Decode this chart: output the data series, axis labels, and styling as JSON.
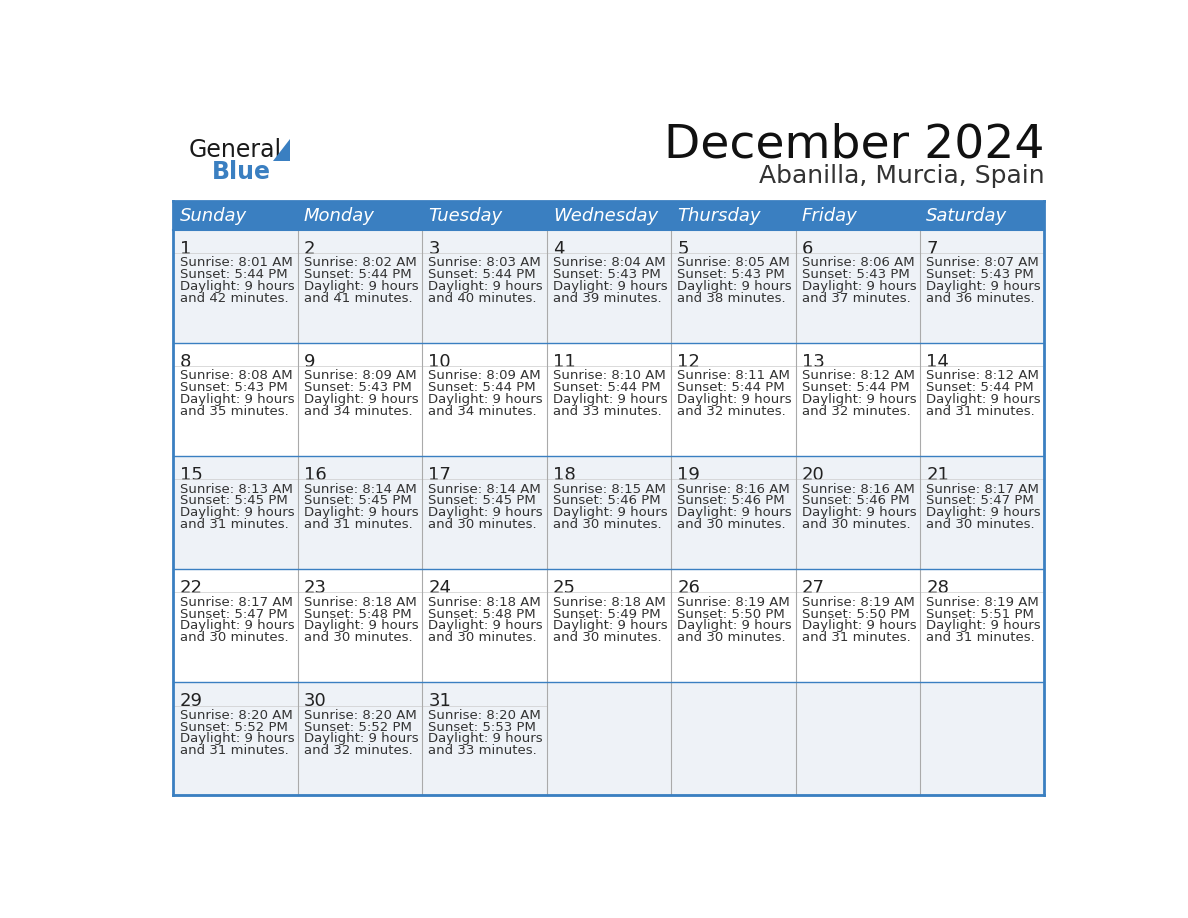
{
  "title": "December 2024",
  "subtitle": "Abanilla, Murcia, Spain",
  "header_bg": "#3a7fc1",
  "header_text": "#ffffff",
  "row_bg_odd": "#eef2f7",
  "row_bg_even": "#ffffff",
  "border_color": "#3a7fc1",
  "cell_separator": "#aaaaaa",
  "day_names": [
    "Sunday",
    "Monday",
    "Tuesday",
    "Wednesday",
    "Thursday",
    "Friday",
    "Saturday"
  ],
  "weeks": [
    [
      {
        "day": "1",
        "sunrise": "8:01 AM",
        "sunset": "5:44 PM",
        "daylight_h": "9 hours",
        "daylight_m": "and 42 minutes."
      },
      {
        "day": "2",
        "sunrise": "8:02 AM",
        "sunset": "5:44 PM",
        "daylight_h": "9 hours",
        "daylight_m": "and 41 minutes."
      },
      {
        "day": "3",
        "sunrise": "8:03 AM",
        "sunset": "5:44 PM",
        "daylight_h": "9 hours",
        "daylight_m": "and 40 minutes."
      },
      {
        "day": "4",
        "sunrise": "8:04 AM",
        "sunset": "5:43 PM",
        "daylight_h": "9 hours",
        "daylight_m": "and 39 minutes."
      },
      {
        "day": "5",
        "sunrise": "8:05 AM",
        "sunset": "5:43 PM",
        "daylight_h": "9 hours",
        "daylight_m": "and 38 minutes."
      },
      {
        "day": "6",
        "sunrise": "8:06 AM",
        "sunset": "5:43 PM",
        "daylight_h": "9 hours",
        "daylight_m": "and 37 minutes."
      },
      {
        "day": "7",
        "sunrise": "8:07 AM",
        "sunset": "5:43 PM",
        "daylight_h": "9 hours",
        "daylight_m": "and 36 minutes."
      }
    ],
    [
      {
        "day": "8",
        "sunrise": "8:08 AM",
        "sunset": "5:43 PM",
        "daylight_h": "9 hours",
        "daylight_m": "and 35 minutes."
      },
      {
        "day": "9",
        "sunrise": "8:09 AM",
        "sunset": "5:43 PM",
        "daylight_h": "9 hours",
        "daylight_m": "and 34 minutes."
      },
      {
        "day": "10",
        "sunrise": "8:09 AM",
        "sunset": "5:44 PM",
        "daylight_h": "9 hours",
        "daylight_m": "and 34 minutes."
      },
      {
        "day": "11",
        "sunrise": "8:10 AM",
        "sunset": "5:44 PM",
        "daylight_h": "9 hours",
        "daylight_m": "and 33 minutes."
      },
      {
        "day": "12",
        "sunrise": "8:11 AM",
        "sunset": "5:44 PM",
        "daylight_h": "9 hours",
        "daylight_m": "and 32 minutes."
      },
      {
        "day": "13",
        "sunrise": "8:12 AM",
        "sunset": "5:44 PM",
        "daylight_h": "9 hours",
        "daylight_m": "and 32 minutes."
      },
      {
        "day": "14",
        "sunrise": "8:12 AM",
        "sunset": "5:44 PM",
        "daylight_h": "9 hours",
        "daylight_m": "and 31 minutes."
      }
    ],
    [
      {
        "day": "15",
        "sunrise": "8:13 AM",
        "sunset": "5:45 PM",
        "daylight_h": "9 hours",
        "daylight_m": "and 31 minutes."
      },
      {
        "day": "16",
        "sunrise": "8:14 AM",
        "sunset": "5:45 PM",
        "daylight_h": "9 hours",
        "daylight_m": "and 31 minutes."
      },
      {
        "day": "17",
        "sunrise": "8:14 AM",
        "sunset": "5:45 PM",
        "daylight_h": "9 hours",
        "daylight_m": "and 30 minutes."
      },
      {
        "day": "18",
        "sunrise": "8:15 AM",
        "sunset": "5:46 PM",
        "daylight_h": "9 hours",
        "daylight_m": "and 30 minutes."
      },
      {
        "day": "19",
        "sunrise": "8:16 AM",
        "sunset": "5:46 PM",
        "daylight_h": "9 hours",
        "daylight_m": "and 30 minutes."
      },
      {
        "day": "20",
        "sunrise": "8:16 AM",
        "sunset": "5:46 PM",
        "daylight_h": "9 hours",
        "daylight_m": "and 30 minutes."
      },
      {
        "day": "21",
        "sunrise": "8:17 AM",
        "sunset": "5:47 PM",
        "daylight_h": "9 hours",
        "daylight_m": "and 30 minutes."
      }
    ],
    [
      {
        "day": "22",
        "sunrise": "8:17 AM",
        "sunset": "5:47 PM",
        "daylight_h": "9 hours",
        "daylight_m": "and 30 minutes."
      },
      {
        "day": "23",
        "sunrise": "8:18 AM",
        "sunset": "5:48 PM",
        "daylight_h": "9 hours",
        "daylight_m": "and 30 minutes."
      },
      {
        "day": "24",
        "sunrise": "8:18 AM",
        "sunset": "5:48 PM",
        "daylight_h": "9 hours",
        "daylight_m": "and 30 minutes."
      },
      {
        "day": "25",
        "sunrise": "8:18 AM",
        "sunset": "5:49 PM",
        "daylight_h": "9 hours",
        "daylight_m": "and 30 minutes."
      },
      {
        "day": "26",
        "sunrise": "8:19 AM",
        "sunset": "5:50 PM",
        "daylight_h": "9 hours",
        "daylight_m": "and 30 minutes."
      },
      {
        "day": "27",
        "sunrise": "8:19 AM",
        "sunset": "5:50 PM",
        "daylight_h": "9 hours",
        "daylight_m": "and 31 minutes."
      },
      {
        "day": "28",
        "sunrise": "8:19 AM",
        "sunset": "5:51 PM",
        "daylight_h": "9 hours",
        "daylight_m": "and 31 minutes."
      }
    ],
    [
      {
        "day": "29",
        "sunrise": "8:20 AM",
        "sunset": "5:52 PM",
        "daylight_h": "9 hours",
        "daylight_m": "and 31 minutes."
      },
      {
        "day": "30",
        "sunrise": "8:20 AM",
        "sunset": "5:52 PM",
        "daylight_h": "9 hours",
        "daylight_m": "and 32 minutes."
      },
      {
        "day": "31",
        "sunrise": "8:20 AM",
        "sunset": "5:53 PM",
        "daylight_h": "9 hours",
        "daylight_m": "and 33 minutes."
      },
      null,
      null,
      null,
      null
    ]
  ],
  "title_fontsize": 34,
  "subtitle_fontsize": 18,
  "header_fontsize": 13,
  "day_number_fontsize": 13,
  "cell_text_fontsize": 9.5
}
